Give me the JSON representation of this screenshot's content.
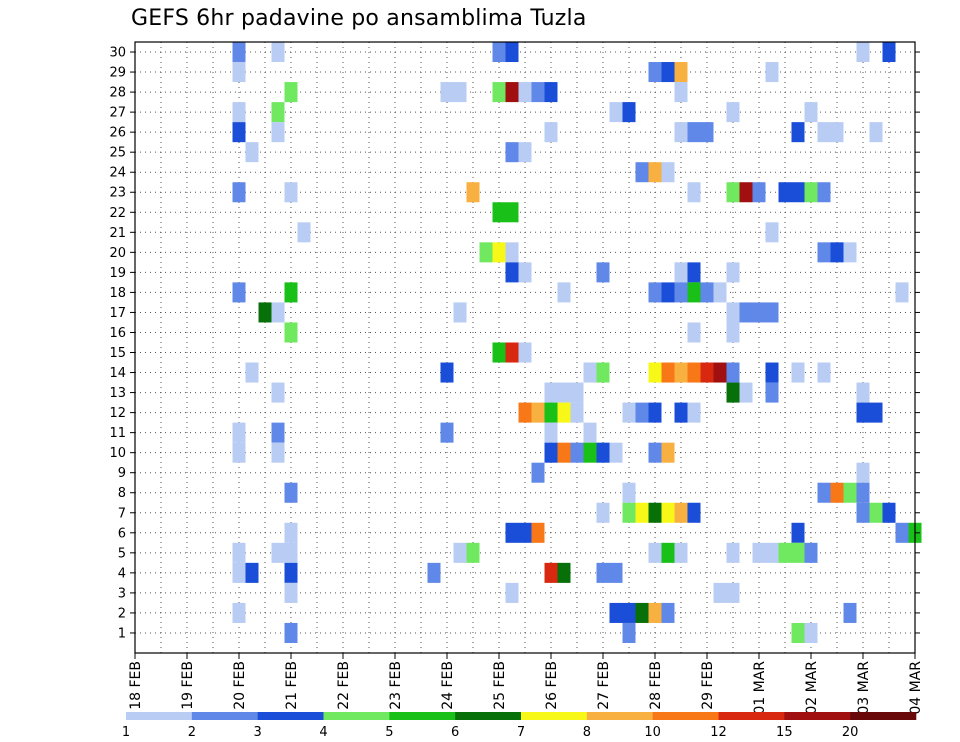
{
  "title": "GEFS 6hr padavine po ansamblima Tuzla",
  "chart_data": {
    "type": "heatmap",
    "title": "GEFS 6hr padavine po ansamblima Tuzla",
    "x_labels": [
      "18 FEB",
      "19 FEB",
      "20 FEB",
      "21 FEB",
      "22 FEB",
      "23 FEB",
      "24 FEB",
      "25 FEB",
      "26 FEB",
      "27 FEB",
      "28 FEB",
      "29 FEB",
      "01 MAR",
      "02 MAR",
      "03 MAR",
      "04 MAR"
    ],
    "x_range": [
      0,
      60
    ],
    "y_labels": [
      "1",
      "2",
      "3",
      "4",
      "5",
      "6",
      "7",
      "8",
      "9",
      "10",
      "11",
      "12",
      "13",
      "14",
      "15",
      "16",
      "17",
      "18",
      "19",
      "20",
      "21",
      "22",
      "23",
      "24",
      "25",
      "26",
      "27",
      "28",
      "29",
      "30"
    ],
    "y_range": [
      0,
      30
    ],
    "grid": true,
    "colorbar": {
      "labels": [
        "1",
        "2",
        "3",
        "4",
        "5",
        "6",
        "7",
        "8",
        "10",
        "12",
        "15",
        "20"
      ],
      "colors": [
        "#b8ccf4",
        "#6088e8",
        "#1a4ed8",
        "#70e860",
        "#18c018",
        "#087008",
        "#f8f818",
        "#f8b040",
        "#f87818",
        "#d82810",
        "#a01010",
        "#680808"
      ]
    },
    "cells": [
      [
        8,
        30,
        1
      ],
      [
        11,
        30,
        0
      ],
      [
        28,
        30,
        1
      ],
      [
        29,
        30,
        2
      ],
      [
        56,
        30,
        0
      ],
      [
        58,
        30,
        2
      ],
      [
        8,
        29,
        0
      ],
      [
        40,
        29,
        1
      ],
      [
        41,
        29,
        2
      ],
      [
        42,
        29,
        7
      ],
      [
        49,
        29,
        0
      ],
      [
        12,
        28,
        3
      ],
      [
        24,
        28,
        0
      ],
      [
        25,
        28,
        0
      ],
      [
        28,
        28,
        3
      ],
      [
        29,
        28,
        10
      ],
      [
        30,
        28,
        0
      ],
      [
        31,
        28,
        1
      ],
      [
        32,
        28,
        2
      ],
      [
        42,
        28,
        0
      ],
      [
        8,
        27,
        0
      ],
      [
        11,
        27,
        3
      ],
      [
        37,
        27,
        0
      ],
      [
        38,
        27,
        2
      ],
      [
        46,
        27,
        0
      ],
      [
        52,
        27,
        0
      ],
      [
        8,
        26,
        2
      ],
      [
        11,
        26,
        0
      ],
      [
        32,
        26,
        0
      ],
      [
        42,
        26,
        0
      ],
      [
        43,
        26,
        1
      ],
      [
        44,
        26,
        1
      ],
      [
        51,
        26,
        2
      ],
      [
        53,
        26,
        0
      ],
      [
        54,
        26,
        0
      ],
      [
        57,
        26,
        0
      ],
      [
        9,
        25,
        0
      ],
      [
        29,
        25,
        1
      ],
      [
        30,
        25,
        0
      ],
      [
        39,
        24,
        1
      ],
      [
        40,
        24,
        7
      ],
      [
        41,
        24,
        0
      ],
      [
        8,
        23,
        1
      ],
      [
        12,
        23,
        0
      ],
      [
        26,
        23,
        7
      ],
      [
        43,
        23,
        0
      ],
      [
        46,
        23,
        3
      ],
      [
        47,
        23,
        10
      ],
      [
        48,
        23,
        1
      ],
      [
        50,
        23,
        2
      ],
      [
        51,
        23,
        2
      ],
      [
        52,
        23,
        3
      ],
      [
        53,
        23,
        1
      ],
      [
        28,
        22,
        4
      ],
      [
        29,
        22,
        4
      ],
      [
        13,
        21,
        0
      ],
      [
        49,
        21,
        0
      ],
      [
        27,
        20,
        3
      ],
      [
        28,
        20,
        6
      ],
      [
        29,
        20,
        0
      ],
      [
        53,
        20,
        1
      ],
      [
        54,
        20,
        2
      ],
      [
        55,
        20,
        0
      ],
      [
        29,
        19,
        2
      ],
      [
        30,
        19,
        0
      ],
      [
        36,
        19,
        1
      ],
      [
        42,
        19,
        0
      ],
      [
        43,
        19,
        2
      ],
      [
        46,
        19,
        0
      ],
      [
        8,
        18,
        1
      ],
      [
        12,
        18,
        4
      ],
      [
        33,
        18,
        0
      ],
      [
        40,
        18,
        1
      ],
      [
        41,
        18,
        2
      ],
      [
        42,
        18,
        1
      ],
      [
        43,
        18,
        4
      ],
      [
        44,
        18,
        1
      ],
      [
        45,
        18,
        0
      ],
      [
        59,
        18,
        0
      ],
      [
        10,
        17,
        5
      ],
      [
        11,
        17,
        0
      ],
      [
        25,
        17,
        0
      ],
      [
        46,
        17,
        0
      ],
      [
        47,
        17,
        1
      ],
      [
        48,
        17,
        1
      ],
      [
        49,
        17,
        1
      ],
      [
        12,
        16,
        3
      ],
      [
        43,
        16,
        0
      ],
      [
        46,
        16,
        0
      ],
      [
        28,
        15,
        4
      ],
      [
        29,
        15,
        9
      ],
      [
        30,
        15,
        0
      ],
      [
        9,
        14,
        0
      ],
      [
        24,
        14,
        2
      ],
      [
        35,
        14,
        0
      ],
      [
        36,
        14,
        3
      ],
      [
        40,
        14,
        6
      ],
      [
        41,
        14,
        8
      ],
      [
        42,
        14,
        7
      ],
      [
        43,
        14,
        8
      ],
      [
        44,
        14,
        9
      ],
      [
        45,
        14,
        10
      ],
      [
        46,
        14,
        1
      ],
      [
        49,
        14,
        2
      ],
      [
        51,
        14,
        0
      ],
      [
        53,
        14,
        0
      ],
      [
        11,
        13,
        0
      ],
      [
        32,
        13,
        0
      ],
      [
        33,
        13,
        0
      ],
      [
        34,
        13,
        0
      ],
      [
        46,
        13,
        5
      ],
      [
        47,
        13,
        0
      ],
      [
        49,
        13,
        1
      ],
      [
        56,
        13,
        0
      ],
      [
        30,
        12,
        8
      ],
      [
        31,
        12,
        7
      ],
      [
        32,
        12,
        4
      ],
      [
        33,
        12,
        6
      ],
      [
        34,
        12,
        0
      ],
      [
        38,
        12,
        0
      ],
      [
        39,
        12,
        1
      ],
      [
        40,
        12,
        2
      ],
      [
        42,
        12,
        2
      ],
      [
        43,
        12,
        0
      ],
      [
        56,
        12,
        2
      ],
      [
        57,
        12,
        2
      ],
      [
        8,
        11,
        0
      ],
      [
        11,
        11,
        1
      ],
      [
        24,
        11,
        1
      ],
      [
        32,
        11,
        0
      ],
      [
        35,
        11,
        0
      ],
      [
        8,
        10,
        0
      ],
      [
        11,
        10,
        0
      ],
      [
        32,
        10,
        2
      ],
      [
        33,
        10,
        8
      ],
      [
        34,
        10,
        1
      ],
      [
        35,
        10,
        4
      ],
      [
        36,
        10,
        2
      ],
      [
        37,
        10,
        0
      ],
      [
        40,
        10,
        1
      ],
      [
        41,
        10,
        7
      ],
      [
        31,
        9,
        1
      ],
      [
        56,
        9,
        0
      ],
      [
        12,
        8,
        1
      ],
      [
        38,
        8,
        0
      ],
      [
        53,
        8,
        1
      ],
      [
        54,
        8,
        8
      ],
      [
        55,
        8,
        3
      ],
      [
        56,
        8,
        1
      ],
      [
        36,
        7,
        0
      ],
      [
        38,
        7,
        3
      ],
      [
        39,
        7,
        6
      ],
      [
        40,
        7,
        5
      ],
      [
        41,
        7,
        6
      ],
      [
        42,
        7,
        7
      ],
      [
        43,
        7,
        2
      ],
      [
        56,
        7,
        1
      ],
      [
        57,
        7,
        3
      ],
      [
        58,
        7,
        2
      ],
      [
        12,
        6,
        0
      ],
      [
        29,
        6,
        2
      ],
      [
        30,
        6,
        2
      ],
      [
        31,
        6,
        8
      ],
      [
        51,
        6,
        2
      ],
      [
        59,
        6,
        1
      ],
      [
        60,
        6,
        4
      ],
      [
        8,
        5,
        0
      ],
      [
        11,
        5,
        0
      ],
      [
        12,
        5,
        0
      ],
      [
        25,
        5,
        0
      ],
      [
        26,
        5,
        3
      ],
      [
        40,
        5,
        0
      ],
      [
        41,
        5,
        4
      ],
      [
        42,
        5,
        0
      ],
      [
        46,
        5,
        0
      ],
      [
        48,
        5,
        0
      ],
      [
        49,
        5,
        0
      ],
      [
        50,
        5,
        3
      ],
      [
        51,
        5,
        3
      ],
      [
        52,
        5,
        1
      ],
      [
        8,
        4,
        0
      ],
      [
        9,
        4,
        2
      ],
      [
        12,
        4,
        2
      ],
      [
        23,
        4,
        1
      ],
      [
        32,
        4,
        9
      ],
      [
        33,
        4,
        5
      ],
      [
        36,
        4,
        1
      ],
      [
        37,
        4,
        1
      ],
      [
        12,
        3,
        0
      ],
      [
        29,
        3,
        0
      ],
      [
        45,
        3,
        0
      ],
      [
        46,
        3,
        0
      ],
      [
        8,
        2,
        0
      ],
      [
        37,
        2,
        2
      ],
      [
        38,
        2,
        2
      ],
      [
        39,
        2,
        5
      ],
      [
        40,
        2,
        7
      ],
      [
        41,
        2,
        1
      ],
      [
        55,
        2,
        1
      ],
      [
        12,
        1,
        1
      ],
      [
        38,
        1,
        1
      ],
      [
        51,
        1,
        3
      ],
      [
        52,
        1,
        0
      ]
    ]
  }
}
